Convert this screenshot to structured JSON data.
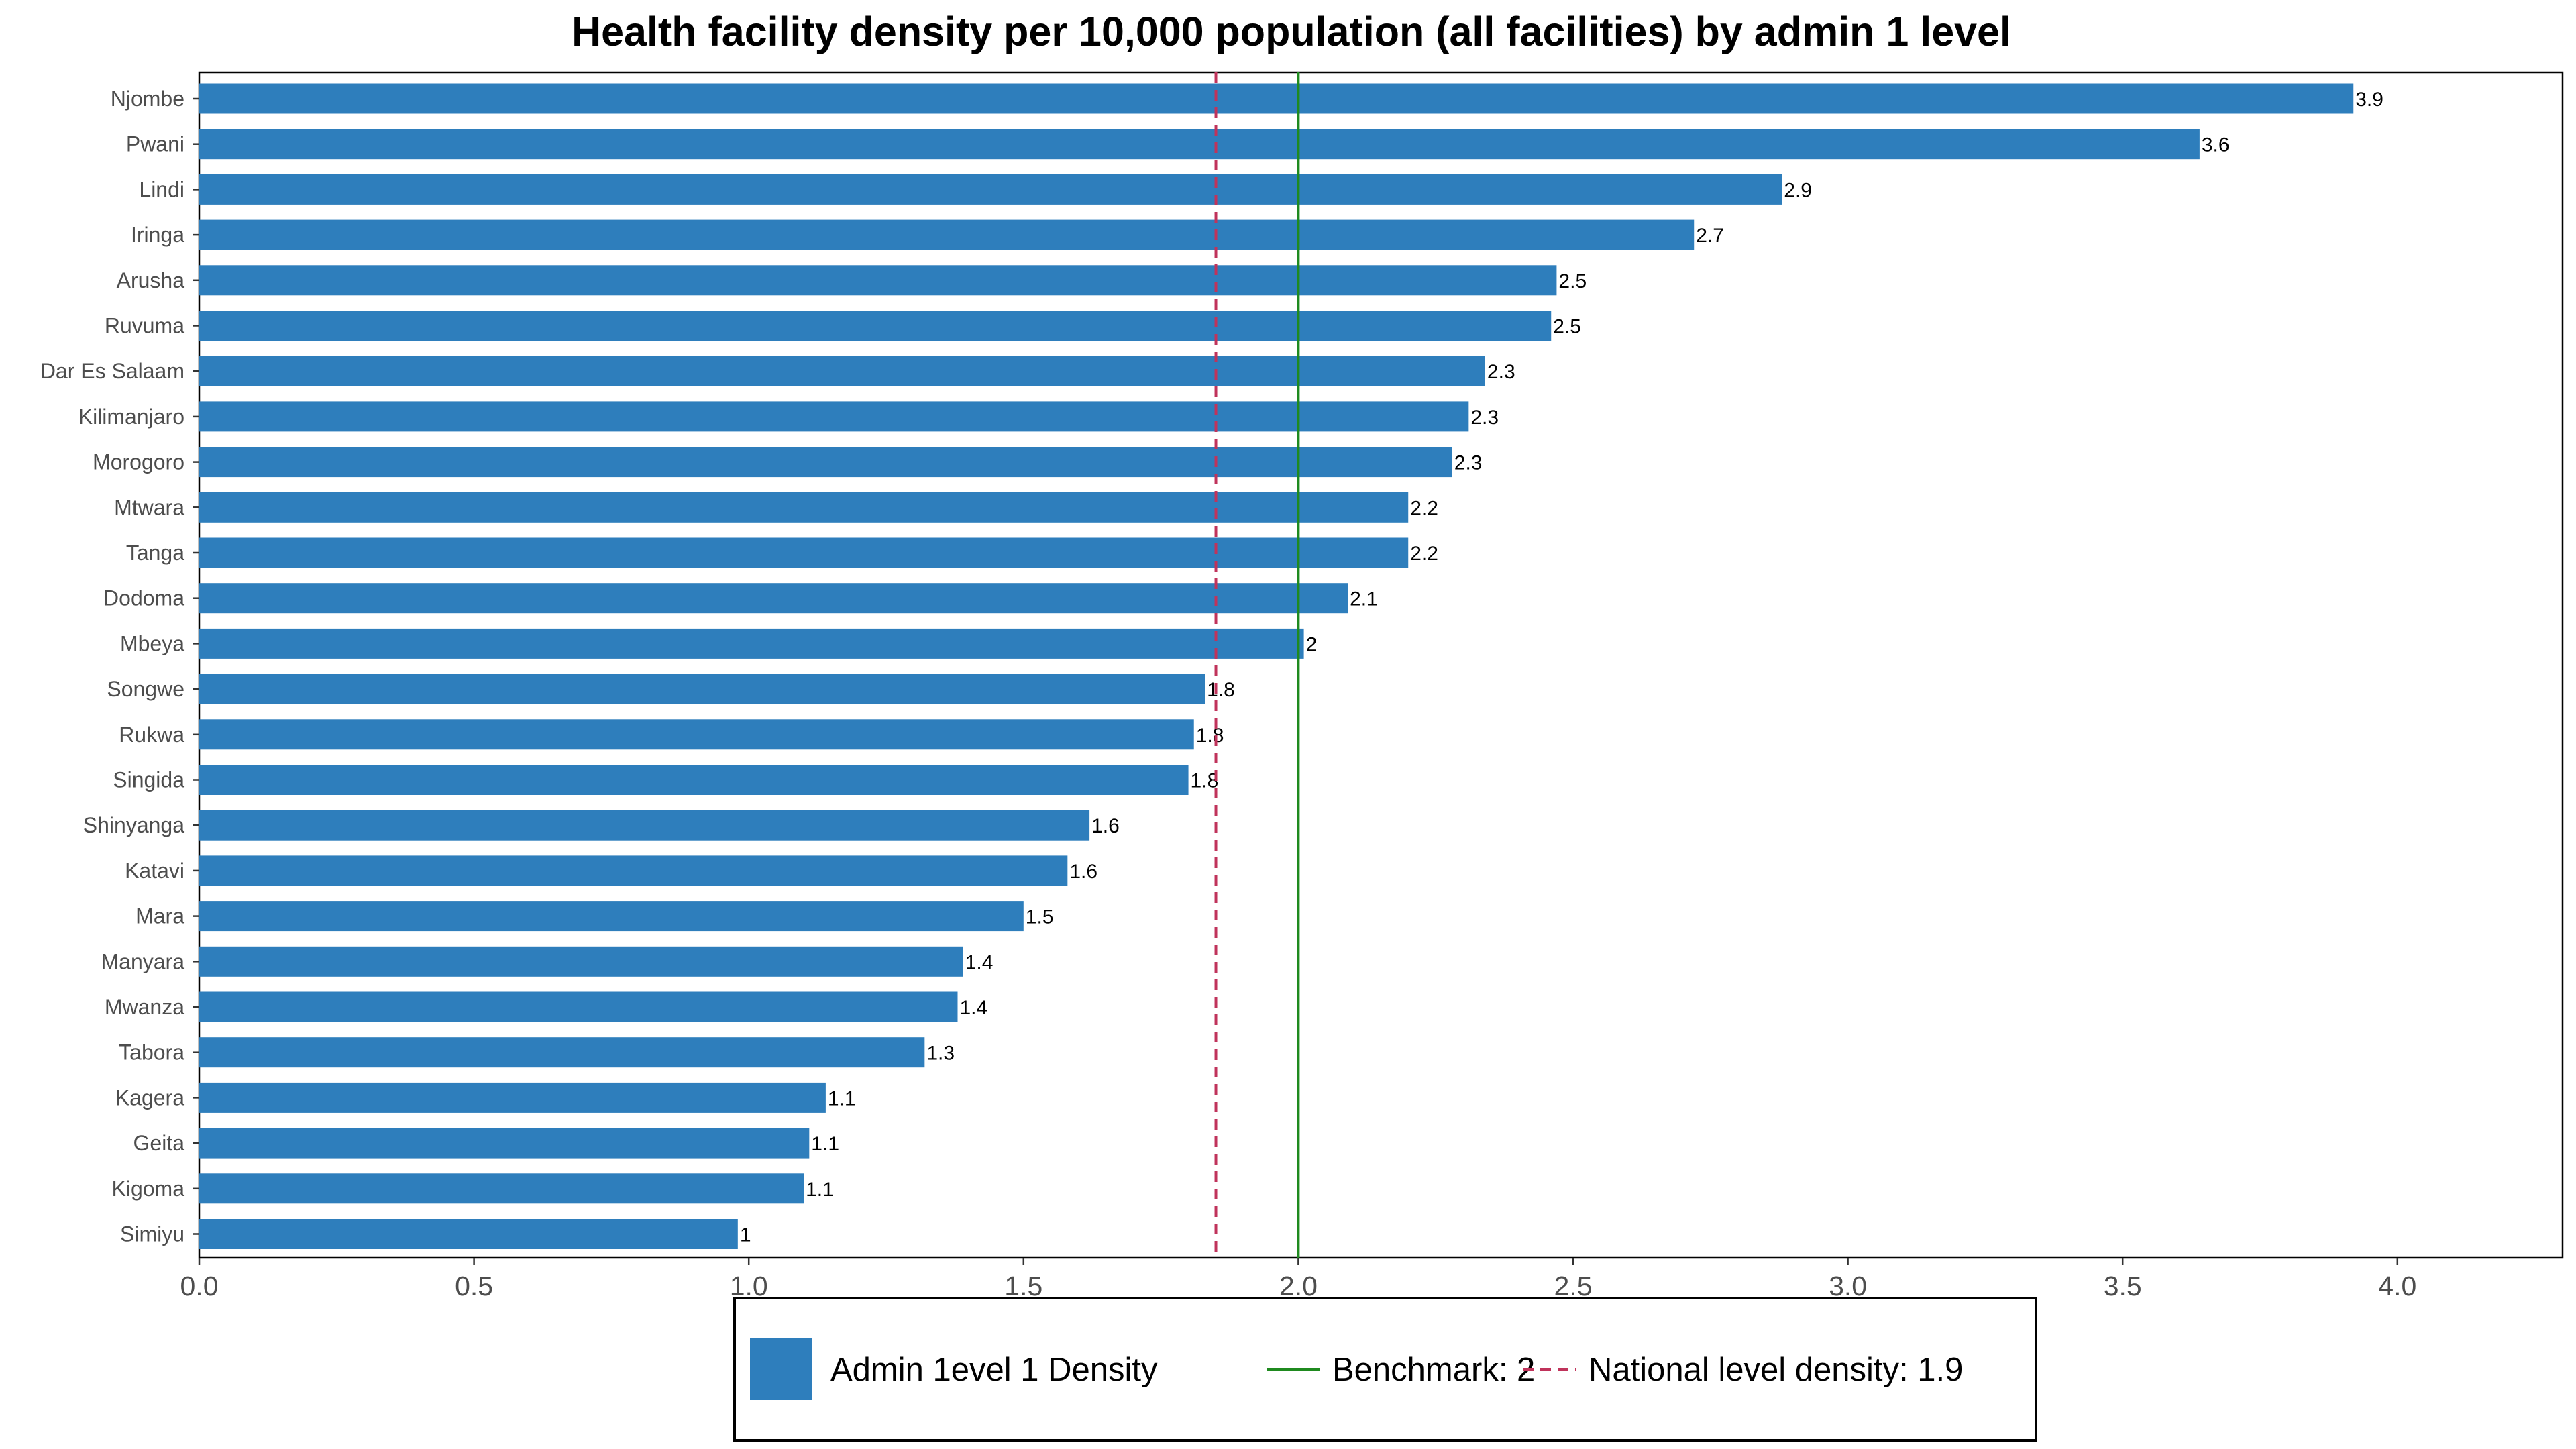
{
  "chart_data": {
    "type": "bar",
    "orientation": "horizontal",
    "title": "Health facility density per 10,000 population (all facilities) by admin 1 level",
    "xlabel": "",
    "ylabel": "",
    "xlim": [
      0,
      4.3
    ],
    "x_ticks": [
      {
        "value": 0.0,
        "label": "0.0"
      },
      {
        "value": 0.5,
        "label": "0.5"
      },
      {
        "value": 1.0,
        "label": "1.0"
      },
      {
        "value": 1.5,
        "label": "1.5"
      },
      {
        "value": 2.0,
        "label": "2.0"
      },
      {
        "value": 2.5,
        "label": "2.5"
      },
      {
        "value": 3.0,
        "label": "3.0"
      },
      {
        "value": 3.5,
        "label": "3.5"
      },
      {
        "value": 4.0,
        "label": "4.0"
      }
    ],
    "grid": false,
    "legend_position": "bottom",
    "colors": {
      "bar": "#2e7ebc",
      "benchmark": "#1f8a1f",
      "national": "#c0335b"
    },
    "categories": [
      "Njombe",
      "Pwani",
      "Lindi",
      "Iringa",
      "Arusha",
      "Ruvuma",
      "Dar Es Salaam",
      "Kilimanjaro",
      "Morogoro",
      "Mtwara",
      "Tanga",
      "Dodoma",
      "Mbeya",
      "Songwe",
      "Rukwa",
      "Singida",
      "Shinyanga",
      "Katavi",
      "Mara",
      "Manyara",
      "Mwanza",
      "Tabora",
      "Kagera",
      "Geita",
      "Kigoma",
      "Simiyu"
    ],
    "values": [
      3.92,
      3.64,
      2.88,
      2.72,
      2.47,
      2.46,
      2.34,
      2.31,
      2.28,
      2.2,
      2.2,
      2.09,
      2.01,
      1.83,
      1.81,
      1.8,
      1.62,
      1.58,
      1.5,
      1.39,
      1.38,
      1.32,
      1.14,
      1.11,
      1.1,
      0.98
    ],
    "data_labels": [
      "3.9",
      "3.6",
      "2.9",
      "2.7",
      "2.5",
      "2.5",
      "2.3",
      "2.3",
      "2.3",
      "2.2",
      "2.2",
      "2.1",
      "2",
      "1.8",
      "1.8",
      "1.8",
      "1.6",
      "1.6",
      "1.5",
      "1.4",
      "1.4",
      "1.3",
      "1.1",
      "1.1",
      "1.1",
      "1"
    ],
    "reference_lines": [
      {
        "name": "Benchmark: 2",
        "value": 2.0,
        "style": "solid",
        "color": "#1f8a1f"
      },
      {
        "name": "National level density: 1.9",
        "value": 1.85,
        "style": "dashed",
        "color": "#c0335b"
      }
    ],
    "legend": [
      {
        "label": "Admin 1evel 1 Density",
        "kind": "box",
        "color": "#2e7ebc"
      },
      {
        "label": "Benchmark: 2",
        "kind": "solid",
        "color": "#1f8a1f"
      },
      {
        "label": "National level density: 1.9",
        "kind": "dashed",
        "color": "#c0335b"
      }
    ]
  }
}
